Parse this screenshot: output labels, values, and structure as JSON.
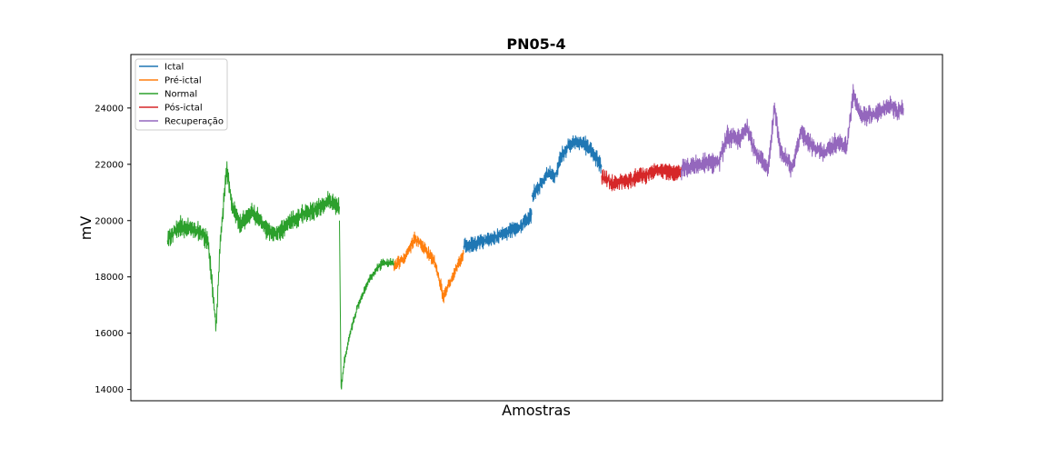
{
  "chart_data": {
    "type": "line",
    "title": "PN05-4",
    "xlabel": "Amostras",
    "ylabel": "mV",
    "ylim": [
      13600,
      25900
    ],
    "yticks": [
      14000,
      16000,
      18000,
      20000,
      22000,
      24000
    ],
    "ytick_labels": [
      "14000",
      "16000",
      "18000",
      "20000",
      "22000",
      "24000"
    ],
    "xticks_shown": false,
    "grid": false,
    "legend_position": "top-left",
    "series": [
      {
        "name": "Ictal",
        "color": "#1f77b4",
        "segments": [
          {
            "x_start": 0.41,
            "x_end": 0.494,
            "knots": [
              [
                0.41,
                19100
              ],
              [
                0.425,
                19200
              ],
              [
                0.44,
                19300
              ],
              [
                0.455,
                19500
              ],
              [
                0.47,
                19650
              ],
              [
                0.483,
                19850
              ],
              [
                0.494,
                20200
              ]
            ],
            "noise_amp": 550
          },
          {
            "x_start": 0.494,
            "x_end": 0.58,
            "knots": [
              [
                0.494,
                20900
              ],
              [
                0.505,
                21300
              ],
              [
                0.515,
                21700
              ],
              [
                0.522,
                21500
              ],
              [
                0.53,
                22300
              ],
              [
                0.54,
                22700
              ],
              [
                0.555,
                22800
              ],
              [
                0.57,
                22400
              ],
              [
                0.58,
                21900
              ]
            ],
            "noise_amp": 550
          }
        ]
      },
      {
        "name": "Pré-ictal",
        "color": "#ff7f0e",
        "segments": [
          {
            "x_start": 0.324,
            "x_end": 0.41,
            "knots": [
              [
                0.324,
                18400
              ],
              [
                0.338,
                18700
              ],
              [
                0.35,
                19400
              ],
              [
                0.365,
                18900
              ],
              [
                0.375,
                18500
              ],
              [
                0.385,
                17300
              ],
              [
                0.395,
                17900
              ],
              [
                0.404,
                18500
              ],
              [
                0.41,
                18800
              ]
            ],
            "noise_amp": 450
          }
        ]
      },
      {
        "name": "Normal",
        "color": "#2ca02c",
        "segments": [
          {
            "x_start": 0.045,
            "x_end": 0.257,
            "knots": [
              [
                0.045,
                19300
              ],
              [
                0.06,
                19800
              ],
              [
                0.075,
                19700
              ],
              [
                0.085,
                19600
              ],
              [
                0.095,
                19300
              ],
              [
                0.105,
                16200
              ],
              [
                0.11,
                19200
              ],
              [
                0.118,
                21800
              ],
              [
                0.125,
                20500
              ],
              [
                0.135,
                19900
              ],
              [
                0.15,
                20300
              ],
              [
                0.165,
                19800
              ],
              [
                0.175,
                19500
              ],
              [
                0.19,
                19800
              ],
              [
                0.21,
                20200
              ],
              [
                0.23,
                20400
              ],
              [
                0.245,
                20700
              ],
              [
                0.257,
                20500
              ]
            ],
            "noise_amp": 650
          },
          {
            "x_start": 0.257,
            "x_end": 0.324,
            "knots": [
              [
                0.257,
                20000
              ],
              [
                0.259,
                13900
              ],
              [
                0.263,
                15000
              ],
              [
                0.27,
                16000
              ],
              [
                0.28,
                17000
              ],
              [
                0.295,
                18000
              ],
              [
                0.31,
                18500
              ],
              [
                0.324,
                18500
              ]
            ],
            "noise_amp": 300
          }
        ]
      },
      {
        "name": "Pós-ictal",
        "color": "#d62728",
        "segments": [
          {
            "x_start": 0.58,
            "x_end": 0.678,
            "knots": [
              [
                0.58,
                21600
              ],
              [
                0.595,
                21300
              ],
              [
                0.61,
                21400
              ],
              [
                0.63,
                21600
              ],
              [
                0.65,
                21800
              ],
              [
                0.668,
                21700
              ],
              [
                0.678,
                21800
              ]
            ],
            "noise_amp": 550
          }
        ]
      },
      {
        "name": "Recuperação",
        "color": "#9467bd",
        "segments": [
          {
            "x_start": 0.678,
            "x_end": 0.952,
            "knots": [
              [
                0.678,
                21800
              ],
              [
                0.7,
                22000
              ],
              [
                0.725,
                22100
              ],
              [
                0.735,
                23000
              ],
              [
                0.75,
                22900
              ],
              [
                0.76,
                23300
              ],
              [
                0.77,
                22400
              ],
              [
                0.785,
                21800
              ],
              [
                0.793,
                24100
              ],
              [
                0.8,
                22500
              ],
              [
                0.815,
                21800
              ],
              [
                0.825,
                23200
              ],
              [
                0.84,
                22600
              ],
              [
                0.855,
                22400
              ],
              [
                0.87,
                22800
              ],
              [
                0.882,
                22600
              ],
              [
                0.89,
                24500
              ],
              [
                0.9,
                23700
              ],
              [
                0.92,
                23800
              ],
              [
                0.935,
                24100
              ],
              [
                0.945,
                23900
              ],
              [
                0.952,
                24000
              ]
            ],
            "noise_amp": 650
          }
        ]
      }
    ]
  }
}
